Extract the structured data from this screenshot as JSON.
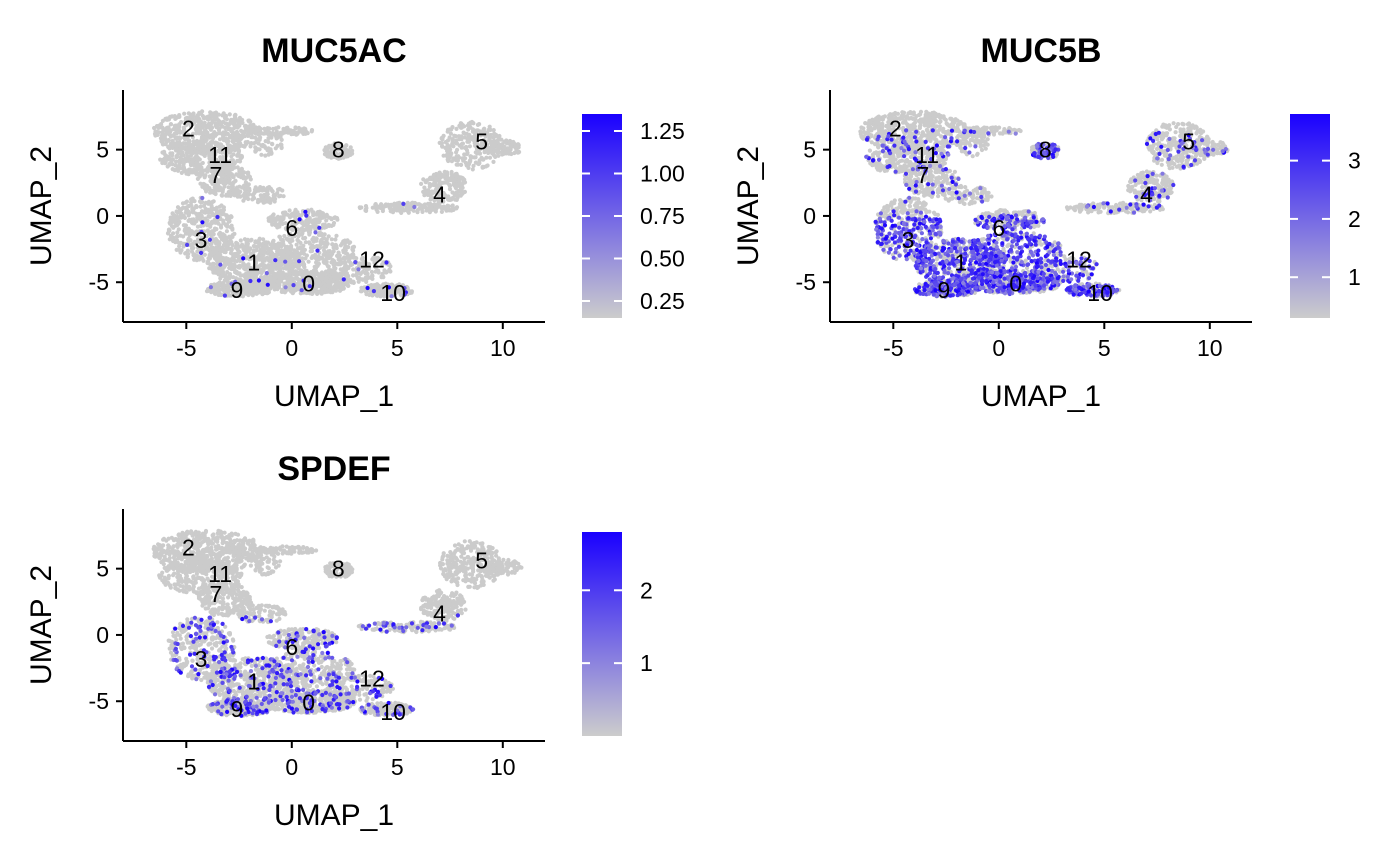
{
  "chart_data": [
    {
      "type": "scatter",
      "title": "MUC5AC",
      "xlabel": "UMAP_1",
      "ylabel": "UMAP_2",
      "xlim": [
        -8,
        12
      ],
      "ylim": [
        -8,
        9.5
      ],
      "xticks": [
        -5,
        0,
        5,
        10
      ],
      "yticks": [
        -5,
        0,
        5
      ],
      "colorbar": {
        "min": 0.15,
        "max": 1.35,
        "ticks": [
          0.25,
          0.5,
          0.75,
          1.0,
          1.25
        ],
        "tick_labels": [
          "0.25",
          "0.50",
          "0.75",
          "1.00",
          "1.25"
        ],
        "low_color": "#cccccc",
        "high_color": "#1a00ff"
      },
      "expression_density": 0.015,
      "cluster_labels": [
        {
          "label": "0",
          "x": 0.8,
          "y": -5.1
        },
        {
          "label": "1",
          "x": -1.8,
          "y": -3.5
        },
        {
          "label": "2",
          "x": -4.9,
          "y": 6.6
        },
        {
          "label": "3",
          "x": -4.3,
          "y": -1.8
        },
        {
          "label": "4",
          "x": 7.0,
          "y": 1.6
        },
        {
          "label": "5",
          "x": 9.0,
          "y": 5.6
        },
        {
          "label": "6",
          "x": 0.0,
          "y": -0.9
        },
        {
          "label": "7",
          "x": -3.6,
          "y": 3.1
        },
        {
          "label": "8",
          "x": 2.2,
          "y": 5.0
        },
        {
          "label": "9",
          "x": -2.6,
          "y": -5.6
        },
        {
          "label": "10",
          "x": 4.8,
          "y": -5.8
        },
        {
          "label": "11",
          "x": -3.4,
          "y": 4.6
        },
        {
          "label": "12",
          "x": 3.8,
          "y": -3.3
        }
      ]
    },
    {
      "type": "scatter",
      "title": "MUC5B",
      "xlabel": "UMAP_1",
      "ylabel": "UMAP_2",
      "xlim": [
        -8,
        12
      ],
      "ylim": [
        -8,
        9.5
      ],
      "xticks": [
        -5,
        0,
        5,
        10
      ],
      "yticks": [
        -5,
        0,
        5
      ],
      "colorbar": {
        "min": 0.3,
        "max": 3.8,
        "ticks": [
          1,
          2,
          3
        ],
        "tick_labels": [
          "1",
          "2",
          "3"
        ],
        "low_color": "#cccccc",
        "high_color": "#1a00ff"
      },
      "expression_density": 0.55,
      "cluster_labels": [
        {
          "label": "0",
          "x": 0.8,
          "y": -5.1
        },
        {
          "label": "1",
          "x": -1.8,
          "y": -3.5
        },
        {
          "label": "2",
          "x": -4.9,
          "y": 6.6
        },
        {
          "label": "3",
          "x": -4.3,
          "y": -1.8
        },
        {
          "label": "4",
          "x": 7.0,
          "y": 1.6
        },
        {
          "label": "5",
          "x": 9.0,
          "y": 5.6
        },
        {
          "label": "6",
          "x": 0.0,
          "y": -0.9
        },
        {
          "label": "7",
          "x": -3.6,
          "y": 3.1
        },
        {
          "label": "8",
          "x": 2.2,
          "y": 5.0
        },
        {
          "label": "9",
          "x": -2.6,
          "y": -5.6
        },
        {
          "label": "10",
          "x": 4.8,
          "y": -5.8
        },
        {
          "label": "11",
          "x": -3.4,
          "y": 4.6
        },
        {
          "label": "12",
          "x": 3.8,
          "y": -3.3
        }
      ]
    },
    {
      "type": "scatter",
      "title": "SPDEF",
      "xlabel": "UMAP_1",
      "ylabel": "UMAP_2",
      "xlim": [
        -8,
        12
      ],
      "ylim": [
        -8,
        9.5
      ],
      "xticks": [
        -5,
        0,
        5,
        10
      ],
      "yticks": [
        -5,
        0,
        5
      ],
      "colorbar": {
        "min": 0.0,
        "max": 2.8,
        "ticks": [
          1,
          2
        ],
        "tick_labels": [
          "1",
          "2"
        ],
        "low_color": "#cccccc",
        "high_color": "#1a00ff"
      },
      "expression_density": 0.18,
      "cluster_labels": [
        {
          "label": "0",
          "x": 0.8,
          "y": -5.1
        },
        {
          "label": "1",
          "x": -1.8,
          "y": -3.5
        },
        {
          "label": "2",
          "x": -4.9,
          "y": 6.6
        },
        {
          "label": "3",
          "x": -4.3,
          "y": -1.8
        },
        {
          "label": "4",
          "x": 7.0,
          "y": 1.6
        },
        {
          "label": "5",
          "x": 9.0,
          "y": 5.6
        },
        {
          "label": "6",
          "x": 0.0,
          "y": -0.9
        },
        {
          "label": "7",
          "x": -3.6,
          "y": 3.1
        },
        {
          "label": "8",
          "x": 2.2,
          "y": 5.0
        },
        {
          "label": "9",
          "x": -2.6,
          "y": -5.6
        },
        {
          "label": "10",
          "x": 4.8,
          "y": -5.8
        },
        {
          "label": "11",
          "x": -3.4,
          "y": 4.6
        },
        {
          "label": "12",
          "x": 3.8,
          "y": -3.3
        }
      ]
    }
  ]
}
